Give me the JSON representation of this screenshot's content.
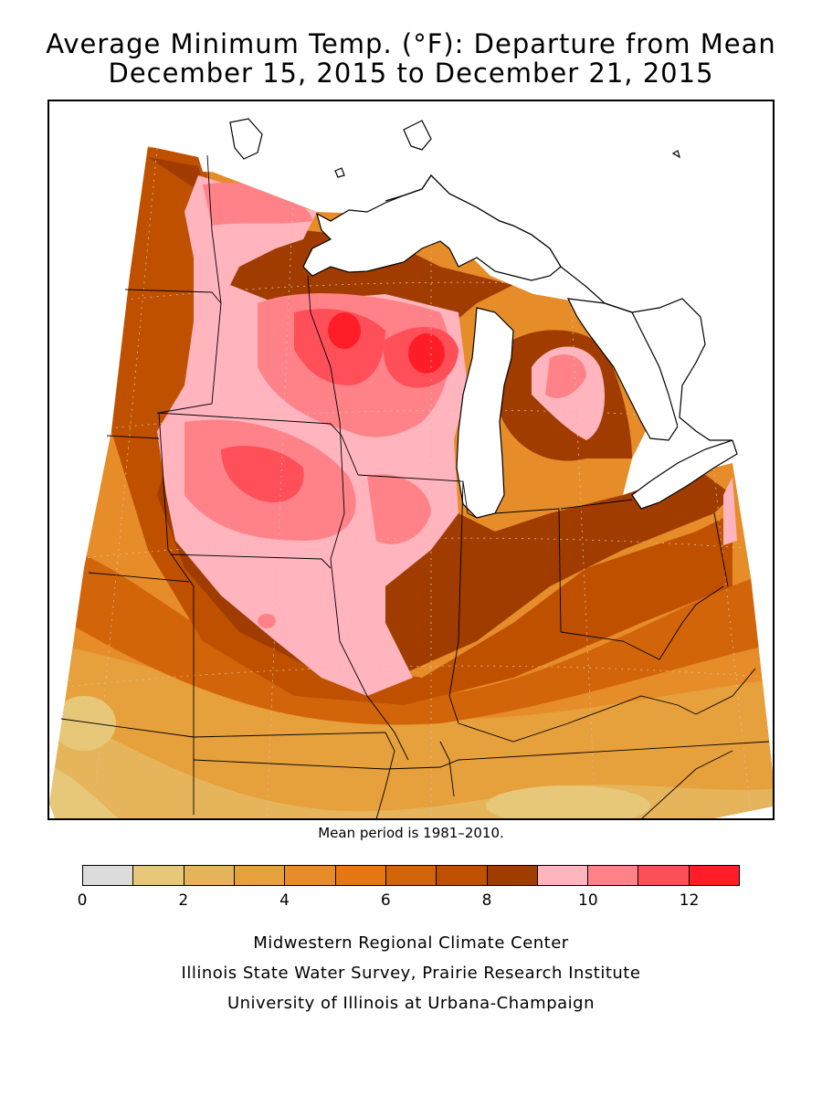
{
  "title": {
    "line1": "Average Minimum Temp. (°F): Departure from Mean",
    "line2": "December 15, 2015 to December 21, 2015"
  },
  "mean_note": "Mean period is 1981–2010.",
  "legend": {
    "ticks": [
      "0",
      "2",
      "4",
      "6",
      "8",
      "10",
      "12"
    ],
    "colors": [
      "#dcdcdc",
      "#e6c878",
      "#e6b45a",
      "#e6a03c",
      "#e68c28",
      "#e67814",
      "#d2640a",
      "#be5000",
      "#a03c00",
      "#ffb4be",
      "#ff8288",
      "#ff505a",
      "#ff1e28"
    ]
  },
  "credits": [
    "Midwestern Regional Climate Center",
    "Illinois State Water Survey, Prairie Research Institute",
    "University of Illinois at Urbana-Champaign"
  ]
}
